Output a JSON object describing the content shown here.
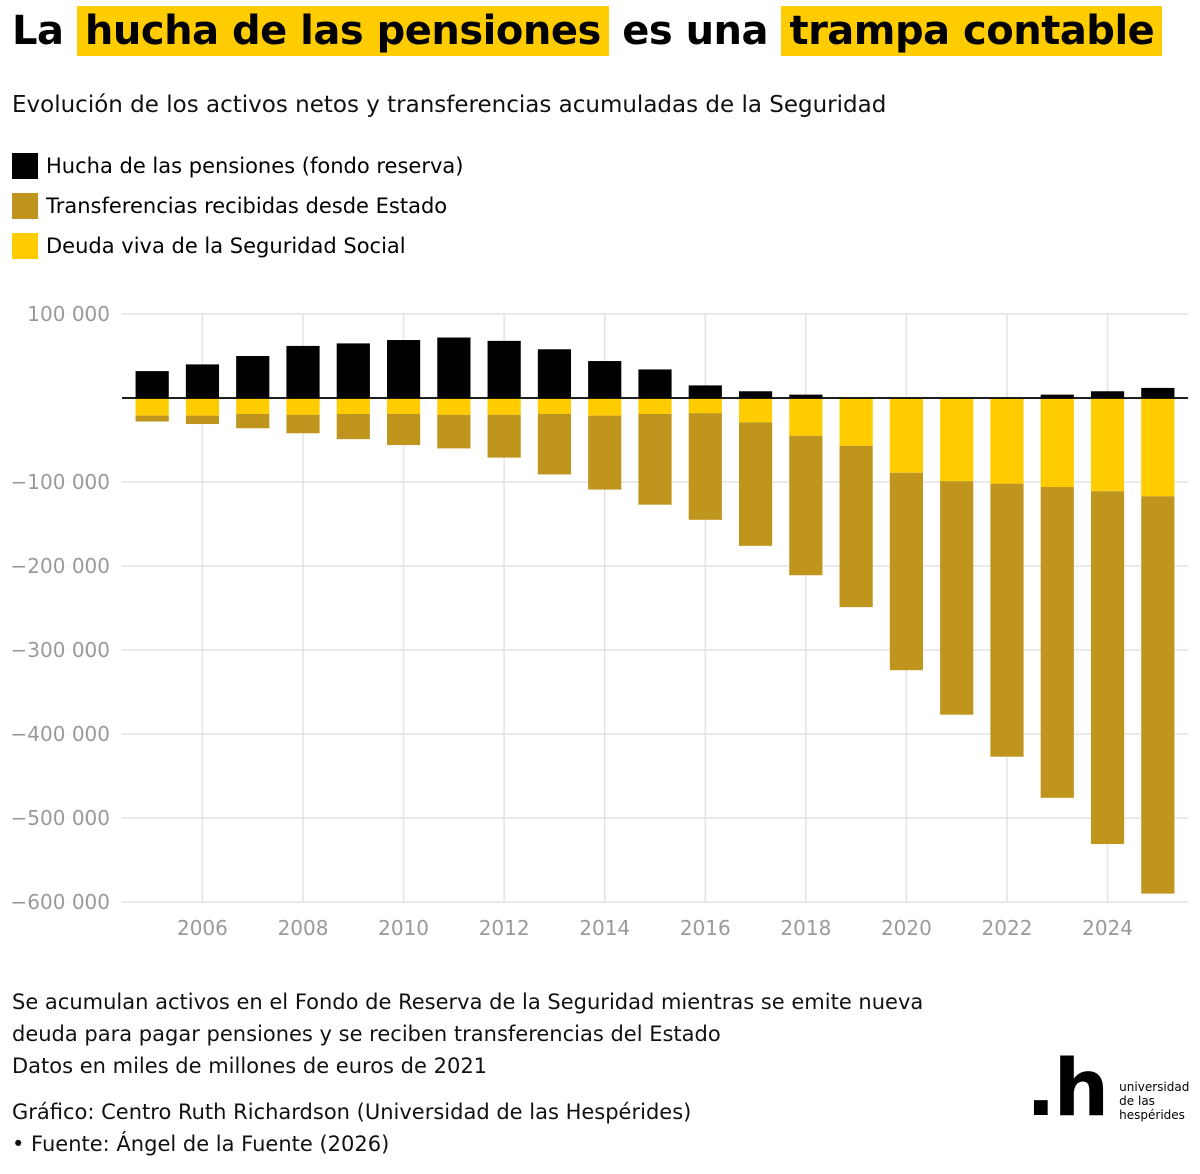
{
  "title": {
    "part1": "La",
    "highlight1": "hucha de las pensiones",
    "part2": "es una",
    "highlight2": "trampa contable"
  },
  "subtitle": "Evolución de los activos netos y transferencias acumuladas de la Seguridad",
  "legend": [
    {
      "label": "Hucha de las pensiones (fondo reserva)",
      "color": "#000000"
    },
    {
      "label": "Transferencias recibidas desde Estado",
      "color": "#c0951e"
    },
    {
      "label": "Deuda viva de la Seguridad Social",
      "color": "#ffcc00"
    }
  ],
  "chart_data": {
    "type": "bar",
    "stacking": "diverging stacked",
    "x": [
      2005,
      2006,
      2007,
      2008,
      2009,
      2010,
      2011,
      2012,
      2013,
      2014,
      2015,
      2016,
      2017,
      2018,
      2019,
      2020,
      2021,
      2022,
      2023,
      2024,
      2025
    ],
    "series": [
      {
        "name": "Hucha de las pensiones (fondo reserva)",
        "color": "#000000",
        "values": [
          32000,
          40000,
          50000,
          62000,
          65000,
          69000,
          72000,
          68000,
          58000,
          44000,
          34000,
          15000,
          8000,
          4000,
          0,
          0,
          0,
          0,
          4000,
          8000,
          12000
        ]
      },
      {
        "name": "Deuda viva de la Seguridad Social",
        "color": "#ffcc00",
        "values": [
          -21000,
          -21000,
          -19000,
          -20000,
          -19000,
          -19000,
          -20000,
          -20000,
          -19000,
          -21000,
          -19000,
          -18000,
          -29000,
          -45000,
          -57000,
          -89000,
          -99000,
          -102000,
          -106000,
          -111000,
          -117000
        ]
      },
      {
        "name": "Transferencias recibidas desde Estado",
        "color": "#c0951e",
        "values": [
          -7000,
          -10000,
          -17000,
          -22000,
          -30000,
          -37000,
          -40000,
          -51000,
          -72000,
          -88000,
          -108000,
          -127000,
          -147000,
          -166000,
          -192000,
          -235000,
          -278000,
          -325000,
          -370000,
          -420000,
          -473000
        ]
      }
    ],
    "stack_order_negative": [
      "Deuda viva de la Seguridad Social",
      "Transferencias recibidas desde Estado"
    ],
    "xticks": [
      2006,
      2008,
      2010,
      2012,
      2014,
      2016,
      2018,
      2020,
      2022,
      2024
    ],
    "yticks": [
      100000,
      0,
      -100000,
      -200000,
      -300000,
      -400000,
      -500000,
      -600000
    ],
    "ytick_labels": [
      "100 000",
      "",
      "−100 000",
      "−200 000",
      "−300 000",
      "−400 000",
      "−500 000",
      "−600 000"
    ],
    "ylim": [
      -600000,
      100000
    ],
    "xlim": [
      2004.4,
      2025.6
    ],
    "grid": true,
    "xlabel": "",
    "ylabel": ""
  },
  "note": [
    "Se acumulan activos en el Fondo de Reserva de la Seguridad mientras se emite nueva",
    "deuda para pagar pensiones y se reciben transferencias del Estado",
    "Datos en miles de millones de euros de 2021"
  ],
  "credit": [
    "Gráfico: Centro Ruth Richardson (Universidad de las Hespérides)",
    " • Fuente: Ángel de la Fuente (2026)"
  ],
  "logo": {
    "mark": ".h",
    "lines": [
      "universidad",
      "de las",
      "hespérides"
    ]
  }
}
